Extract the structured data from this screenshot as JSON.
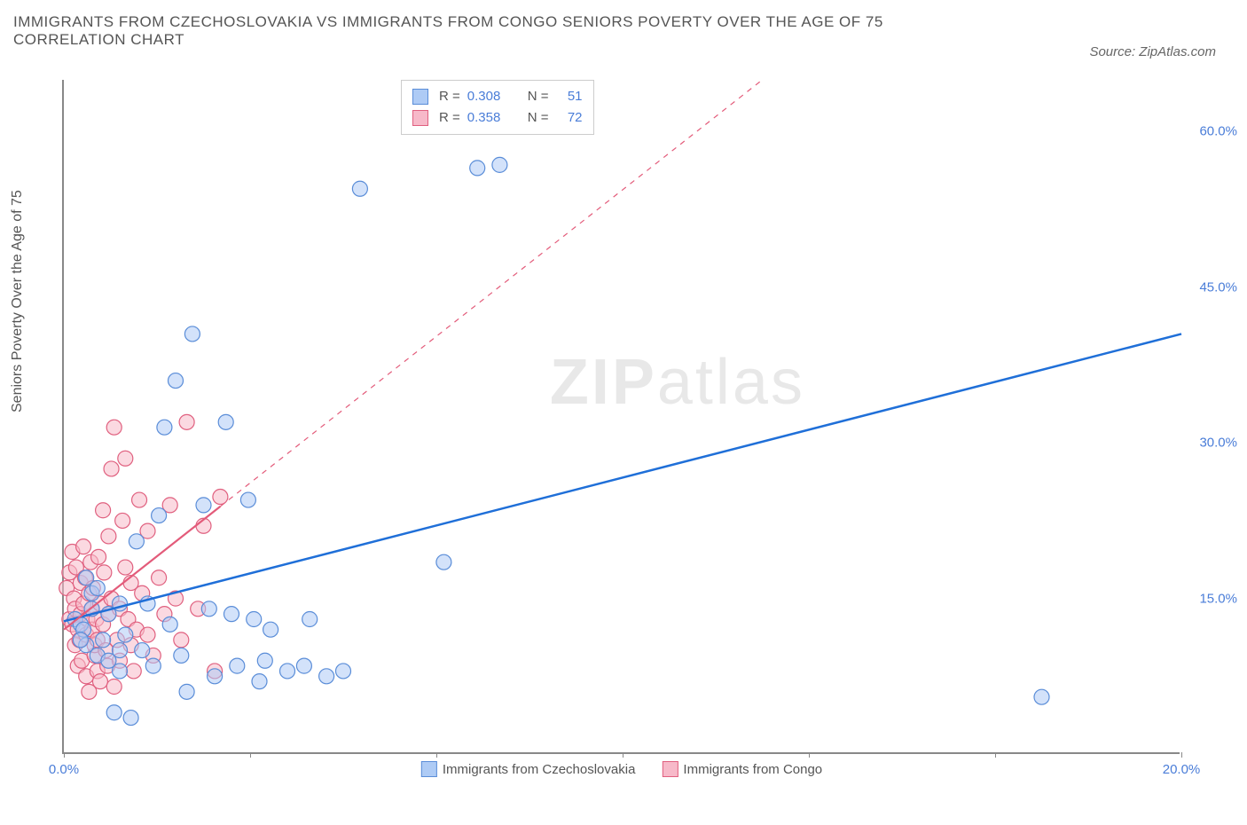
{
  "title": "IMMIGRANTS FROM CZECHOSLOVAKIA VS IMMIGRANTS FROM CONGO SENIORS POVERTY OVER THE AGE OF 75 CORRELATION CHART",
  "source": "Source: ZipAtlas.com",
  "y_axis": {
    "label": "Seniors Poverty Over the Age of 75"
  },
  "watermark": {
    "bold": "ZIP",
    "light": "atlas"
  },
  "chart": {
    "type": "scatter",
    "xlim": [
      0,
      20
    ],
    "ylim": [
      0,
      65
    ],
    "x_ticks": [
      0.0,
      20.0
    ],
    "x_tick_labels": [
      "0.0%",
      "20.0%"
    ],
    "x_minor_ticks": [
      3.33,
      6.67,
      10.0,
      13.33,
      16.67
    ],
    "y_ticks": [
      15.0,
      30.0,
      45.0,
      60.0
    ],
    "y_tick_labels": [
      "15.0%",
      "30.0%",
      "45.0%",
      "60.0%"
    ],
    "background_color": "#ffffff",
    "series": [
      {
        "name": "Immigrants from Czechoslovakia",
        "color_fill": "#aecbf5",
        "color_stroke": "#5a8dd8",
        "fill_opacity": 0.55,
        "marker_radius": 8.5,
        "R": "0.308",
        "N": "51",
        "trend": {
          "color": "#1f6fd8",
          "width": 2.5,
          "x1": 0,
          "y1": 12.8,
          "x2": 20,
          "y2": 40.5,
          "solid_until_x": 20
        },
        "points": [
          [
            0.2,
            13.0
          ],
          [
            0.3,
            12.5
          ],
          [
            0.35,
            12.0
          ],
          [
            0.4,
            10.5
          ],
          [
            0.5,
            14.0
          ],
          [
            0.6,
            9.5
          ],
          [
            0.7,
            11.0
          ],
          [
            0.8,
            13.5
          ],
          [
            0.9,
            4.0
          ],
          [
            1.0,
            8.0
          ],
          [
            1.0,
            14.5
          ],
          [
            1.1,
            11.5
          ],
          [
            1.2,
            3.5
          ],
          [
            1.3,
            20.5
          ],
          [
            1.4,
            10.0
          ],
          [
            1.5,
            14.5
          ],
          [
            1.6,
            8.5
          ],
          [
            1.7,
            23.0
          ],
          [
            1.8,
            31.5
          ],
          [
            1.9,
            12.5
          ],
          [
            2.0,
            36.0
          ],
          [
            2.1,
            9.5
          ],
          [
            2.2,
            6.0
          ],
          [
            2.3,
            40.5
          ],
          [
            2.5,
            24.0
          ],
          [
            2.6,
            14.0
          ],
          [
            2.7,
            7.5
          ],
          [
            2.9,
            32.0
          ],
          [
            3.0,
            13.5
          ],
          [
            3.1,
            8.5
          ],
          [
            3.3,
            24.5
          ],
          [
            3.4,
            13.0
          ],
          [
            3.5,
            7.0
          ],
          [
            3.6,
            9.0
          ],
          [
            3.7,
            12.0
          ],
          [
            4.0,
            8.0
          ],
          [
            4.3,
            8.5
          ],
          [
            4.4,
            13.0
          ],
          [
            4.7,
            7.5
          ],
          [
            5.0,
            8.0
          ],
          [
            5.3,
            54.5
          ],
          [
            6.8,
            18.5
          ],
          [
            7.4,
            56.5
          ],
          [
            7.8,
            56.8
          ],
          [
            17.5,
            5.5
          ],
          [
            0.5,
            15.5
          ],
          [
            0.6,
            16.0
          ],
          [
            0.4,
            17.0
          ],
          [
            0.8,
            9.0
          ],
          [
            1.0,
            10.0
          ],
          [
            0.3,
            11.0
          ]
        ]
      },
      {
        "name": "Immigrants from Congo",
        "color_fill": "#f7b9c9",
        "color_stroke": "#e0607f",
        "fill_opacity": 0.55,
        "marker_radius": 8.5,
        "R": "0.358",
        "N": "72",
        "trend": {
          "color": "#e35b7a",
          "width": 2.2,
          "x1": 0,
          "y1": 12.0,
          "x2": 12.5,
          "y2": 65.0,
          "solid_until_x": 2.8
        },
        "points": [
          [
            0.05,
            16.0
          ],
          [
            0.1,
            17.5
          ],
          [
            0.1,
            13.0
          ],
          [
            0.15,
            12.5
          ],
          [
            0.15,
            19.5
          ],
          [
            0.18,
            15.0
          ],
          [
            0.2,
            10.5
          ],
          [
            0.2,
            14.0
          ],
          [
            0.22,
            18.0
          ],
          [
            0.25,
            8.5
          ],
          [
            0.25,
            12.0
          ],
          [
            0.28,
            11.0
          ],
          [
            0.3,
            16.5
          ],
          [
            0.3,
            13.5
          ],
          [
            0.32,
            9.0
          ],
          [
            0.35,
            14.5
          ],
          [
            0.35,
            20.0
          ],
          [
            0.38,
            17.0
          ],
          [
            0.4,
            7.5
          ],
          [
            0.4,
            11.5
          ],
          [
            0.42,
            13.0
          ],
          [
            0.45,
            15.5
          ],
          [
            0.45,
            6.0
          ],
          [
            0.48,
            18.5
          ],
          [
            0.5,
            12.0
          ],
          [
            0.5,
            14.0
          ],
          [
            0.52,
            16.0
          ],
          [
            0.55,
            9.5
          ],
          [
            0.55,
            10.5
          ],
          [
            0.58,
            13.0
          ],
          [
            0.6,
            8.0
          ],
          [
            0.6,
            11.0
          ],
          [
            0.62,
            19.0
          ],
          [
            0.65,
            7.0
          ],
          [
            0.65,
            14.5
          ],
          [
            0.7,
            12.5
          ],
          [
            0.7,
            23.5
          ],
          [
            0.72,
            17.5
          ],
          [
            0.75,
            10.0
          ],
          [
            0.78,
            8.5
          ],
          [
            0.8,
            13.5
          ],
          [
            0.8,
            21.0
          ],
          [
            0.85,
            27.5
          ],
          [
            0.85,
            15.0
          ],
          [
            0.9,
            6.5
          ],
          [
            0.9,
            31.5
          ],
          [
            0.95,
            11.0
          ],
          [
            1.0,
            9.0
          ],
          [
            1.0,
            14.0
          ],
          [
            1.05,
            22.5
          ],
          [
            1.1,
            18.0
          ],
          [
            1.1,
            28.5
          ],
          [
            1.15,
            13.0
          ],
          [
            1.2,
            10.5
          ],
          [
            1.2,
            16.5
          ],
          [
            1.25,
            8.0
          ],
          [
            1.3,
            12.0
          ],
          [
            1.35,
            24.5
          ],
          [
            1.4,
            15.5
          ],
          [
            1.5,
            11.5
          ],
          [
            1.5,
            21.5
          ],
          [
            1.6,
            9.5
          ],
          [
            1.7,
            17.0
          ],
          [
            1.8,
            13.5
          ],
          [
            1.9,
            24.0
          ],
          [
            2.0,
            15.0
          ],
          [
            2.1,
            11.0
          ],
          [
            2.2,
            32.0
          ],
          [
            2.4,
            14.0
          ],
          [
            2.5,
            22.0
          ],
          [
            2.7,
            8.0
          ],
          [
            2.8,
            24.8
          ]
        ]
      }
    ]
  },
  "legend_bottom": [
    {
      "label": "Immigrants from Czechoslovakia",
      "fill": "#aecbf5",
      "stroke": "#5a8dd8"
    },
    {
      "label": "Immigrants from Congo",
      "fill": "#f7b9c9",
      "stroke": "#e0607f"
    }
  ]
}
